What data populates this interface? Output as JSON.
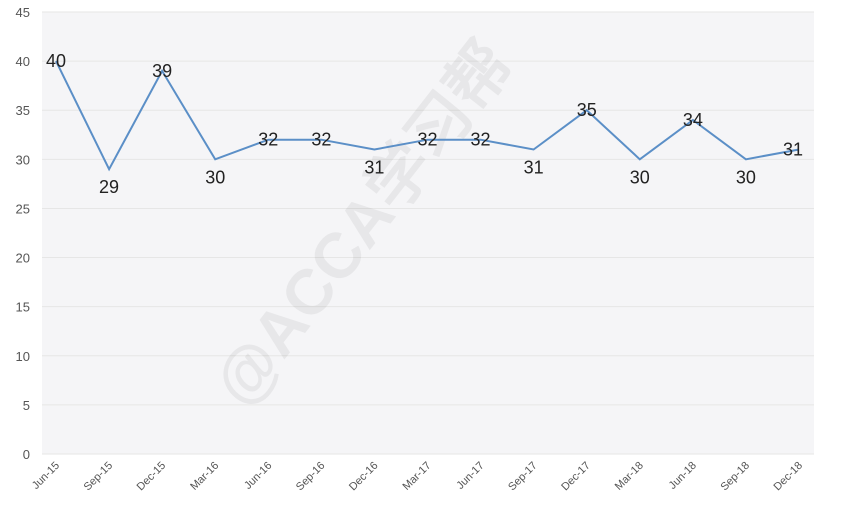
{
  "chart_data": {
    "type": "line",
    "categories": [
      "Jun-15",
      "Sep-15",
      "Dec-15",
      "Mar-16",
      "Jun-16",
      "Sep-16",
      "Dec-16",
      "Mar-17",
      "Jun-17",
      "Sep-17",
      "Dec-17",
      "Mar-18",
      "Jun-18",
      "Sep-18",
      "Dec-18"
    ],
    "series": [
      {
        "values": [
          40,
          29,
          39,
          30,
          32,
          32,
          31,
          32,
          32,
          31,
          35,
          30,
          34,
          30,
          31
        ]
      }
    ],
    "data_labels": [
      "40",
      "29",
      "39",
      "30",
      "32",
      "32",
      "31",
      "32",
      "32",
      "31",
      "35",
      "30",
      "34",
      "30",
      "31"
    ],
    "yticks": [
      "0",
      "5",
      "10",
      "15",
      "20",
      "25",
      "30",
      "35",
      "40",
      "45"
    ],
    "ylim": [
      0,
      45
    ],
    "grid": true,
    "line_color": "#5b8fc7",
    "watermark": "@ACCA学习帮"
  }
}
